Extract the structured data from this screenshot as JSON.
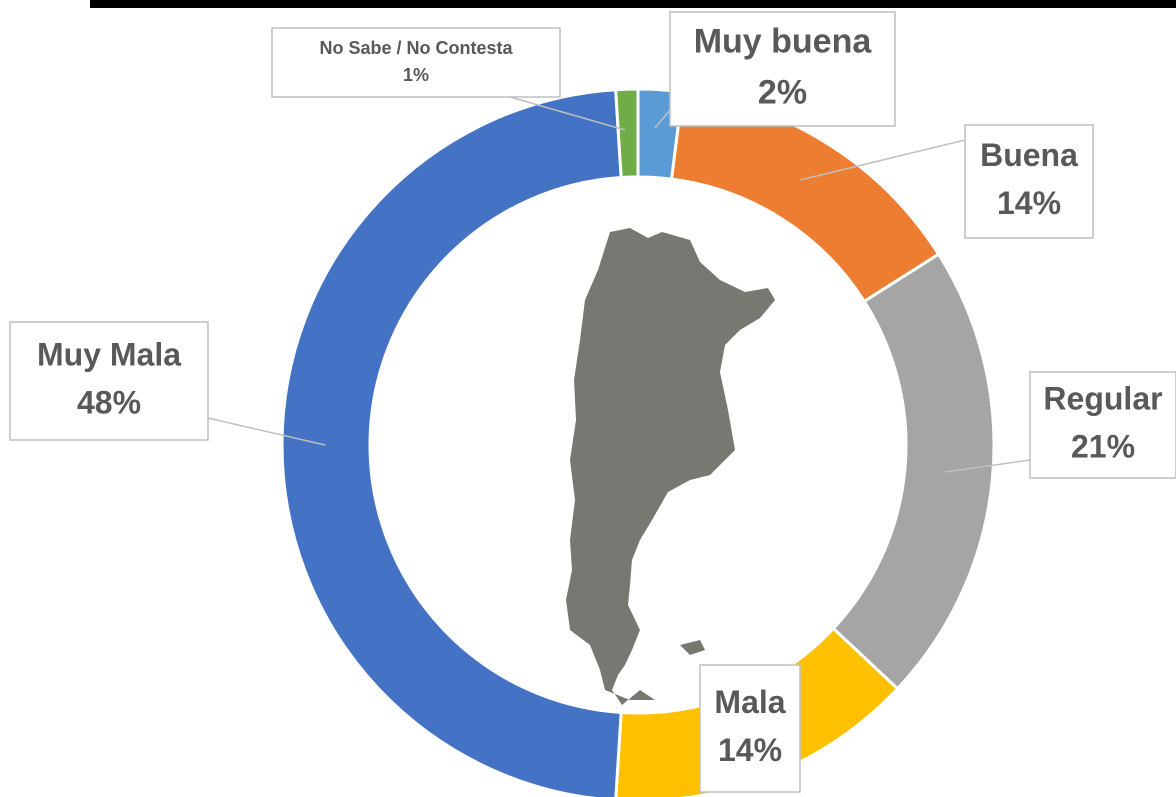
{
  "chart_data": {
    "type": "donut",
    "categories": [
      "Muy buena",
      "Buena",
      "Regular",
      "Mala",
      "Muy Mala",
      "No Sabe / No Contesta"
    ],
    "values": [
      2,
      14,
      21,
      14,
      48,
      1
    ],
    "value_labels": [
      "2%",
      "14%",
      "21%",
      "14%",
      "48%",
      "1%"
    ],
    "colors": [
      "#5b9bd5",
      "#ed7d31",
      "#a5a5a5",
      "#ffc000",
      "#4472c4",
      "#70ad47"
    ]
  }
}
